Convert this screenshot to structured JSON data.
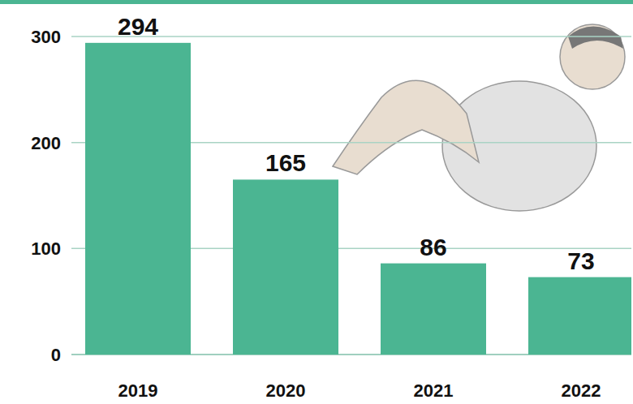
{
  "chart_data": {
    "type": "bar",
    "categories": [
      "2019",
      "2020",
      "2021",
      "2022"
    ],
    "values": [
      294,
      165,
      86,
      73
    ],
    "color": "#4bb592",
    "ylim": [
      0,
      300
    ],
    "yticks": [
      0,
      100,
      200,
      300
    ],
    "grid": true,
    "data_labels": true
  }
}
